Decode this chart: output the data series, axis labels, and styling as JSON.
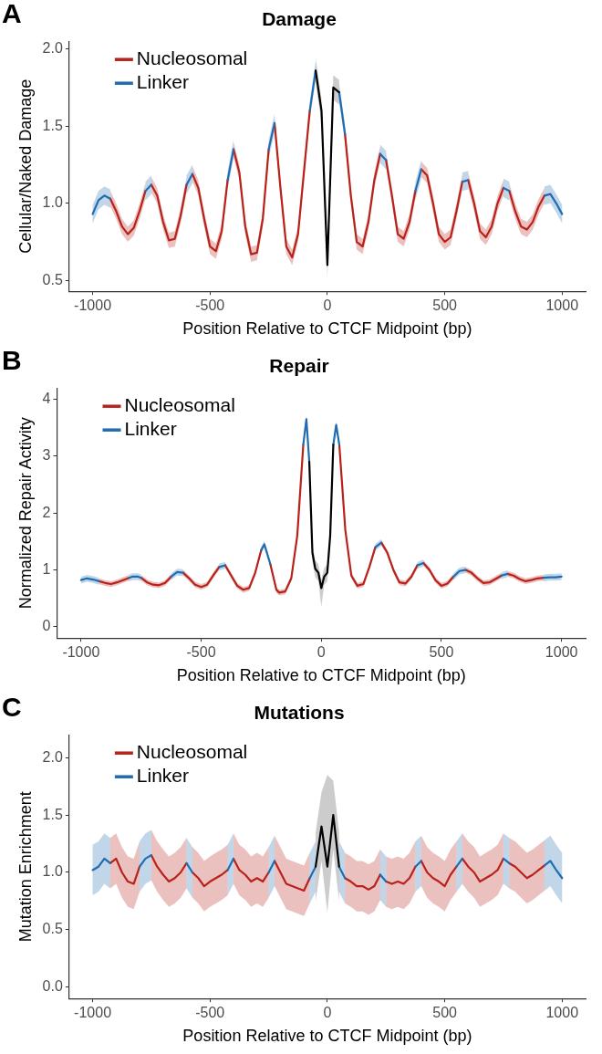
{
  "chart_data": [
    {
      "type": "line",
      "title": "Damage",
      "xlabel": "Position Relative to CTCF Midpoint (bp)",
      "ylabel": "Cellular/Naked Damage",
      "annotations": [
        "A"
      ],
      "legend": "top left",
      "xlim": [
        -1100,
        1100
      ],
      "xticks": [
        -1000,
        -500,
        0,
        500,
        1000
      ],
      "ylim": [
        0.43,
        2.05
      ],
      "yticks": [
        0.5,
        {
          "value": 1,
          "label": "1.0"
        },
        1.5,
        {
          "value": 2,
          "label": "2.0"
        }
      ],
      "series": [
        {
          "name": "Nucleosomal",
          "color": "#b8221a",
          "x": [
            -925,
            -900,
            -875,
            -850,
            -825,
            -800,
            -775,
            -763,
            -750,
            -725,
            -700,
            -675,
            -650,
            -625,
            -600,
            -588,
            -575,
            -550,
            -525,
            -500,
            -475,
            -450,
            -425,
            -413,
            -400,
            -375,
            -350,
            -325,
            -300,
            -275,
            -250,
            -238,
            -225,
            -200,
            -175,
            -150,
            -125,
            -100,
            -75,
            0,
            75,
            100,
            125,
            150,
            175,
            200,
            225,
            238,
            250,
            275,
            300,
            325,
            350,
            375,
            388,
            400,
            425,
            450,
            475,
            500,
            525,
            550,
            575,
            588,
            600,
            625,
            650,
            675,
            700,
            725,
            750,
            763,
            775,
            800,
            825,
            850,
            875,
            900,
            925
          ],
          "values": [
            1.03,
            0.95,
            0.85,
            0.8,
            0.84,
            0.95,
            1.08,
            null,
            1.12,
            1.05,
            0.88,
            0.76,
            0.77,
            0.92,
            1.12,
            null,
            1.19,
            1.1,
            0.9,
            0.72,
            0.69,
            0.82,
            1.15,
            null,
            1.35,
            1.2,
            0.85,
            0.67,
            0.68,
            0.9,
            1.35,
            null,
            1.52,
            1.1,
            0.72,
            0.65,
            0.8,
            1.2,
            1.6,
            null,
            1.45,
            1.05,
            0.75,
            0.72,
            0.88,
            1.15,
            1.32,
            null,
            1.28,
            1.05,
            0.8,
            0.77,
            0.88,
            1.08,
            null,
            1.22,
            1.18,
            1.0,
            0.8,
            0.75,
            0.78,
            0.95,
            1.14,
            null,
            1.15,
            1.0,
            0.82,
            0.78,
            0.85,
            1.0,
            1.1,
            null,
            1.08,
            0.95,
            0.85,
            0.83,
            0.88,
            0.98,
            1.05
          ],
          "lower": [
            0.98,
            0.9,
            0.8,
            0.75,
            0.79,
            0.9,
            1.03,
            null,
            1.07,
            1.0,
            0.83,
            0.71,
            0.72,
            0.87,
            1.07,
            null,
            1.14,
            1.05,
            0.85,
            0.67,
            0.64,
            0.77,
            1.1,
            null,
            1.3,
            1.15,
            0.8,
            0.62,
            0.63,
            0.85,
            1.3,
            null,
            1.47,
            1.05,
            0.67,
            0.6,
            0.75,
            1.15,
            1.55,
            null,
            1.4,
            1.0,
            0.7,
            0.67,
            0.83,
            1.1,
            1.27,
            null,
            1.23,
            1.0,
            0.75,
            0.72,
            0.83,
            1.03,
            null,
            1.17,
            1.13,
            0.95,
            0.75,
            0.7,
            0.73,
            0.9,
            1.09,
            null,
            1.1,
            0.95,
            0.77,
            0.73,
            0.8,
            0.95,
            1.05,
            null,
            1.03,
            0.9,
            0.8,
            0.78,
            0.83,
            0.93,
            1.0
          ],
          "upper": [
            1.08,
            1.0,
            0.9,
            0.85,
            0.89,
            1.0,
            1.13,
            null,
            1.17,
            1.1,
            0.93,
            0.81,
            0.82,
            0.97,
            1.17,
            null,
            1.24,
            1.15,
            0.95,
            0.77,
            0.74,
            0.87,
            1.2,
            null,
            1.4,
            1.25,
            0.9,
            0.72,
            0.73,
            0.95,
            1.4,
            null,
            1.57,
            1.15,
            0.77,
            0.7,
            0.85,
            1.25,
            1.65,
            null,
            1.5,
            1.1,
            0.8,
            0.77,
            0.93,
            1.2,
            1.37,
            null,
            1.33,
            1.1,
            0.85,
            0.82,
            0.93,
            1.13,
            null,
            1.27,
            1.23,
            1.05,
            0.85,
            0.8,
            0.83,
            1.0,
            1.19,
            null,
            1.2,
            1.05,
            0.87,
            0.83,
            0.9,
            1.05,
            1.15,
            null,
            1.13,
            1.0,
            0.9,
            0.88,
            0.93,
            1.03,
            1.1
          ]
        },
        {
          "name": "Linker",
          "color": "#1f6db0",
          "x": [
            -1000,
            -975,
            -950,
            -925,
            -850,
            -775,
            -750,
            -675,
            -600,
            -575,
            -500,
            -425,
            -400,
            -325,
            -250,
            -225,
            -150,
            -75,
            -50,
            0,
            50,
            75,
            150,
            225,
            250,
            325,
            375,
            400,
            500,
            575,
            600,
            675,
            750,
            775,
            850,
            925,
            950,
            975,
            1000
          ],
          "values": [
            0.93,
            1.02,
            1.05,
            1.03,
            null,
            1.08,
            1.12,
            null,
            1.12,
            1.19,
            null,
            1.15,
            1.35,
            null,
            1.35,
            1.52,
            null,
            1.6,
            1.86,
            null,
            1.72,
            1.45,
            null,
            1.32,
            1.28,
            null,
            1.08,
            1.22,
            null,
            1.14,
            1.15,
            null,
            1.1,
            1.08,
            null,
            1.05,
            1.06,
            1.0,
            0.93
          ],
          "lower": [
            0.87,
            0.96,
            0.99,
            0.97,
            null,
            1.02,
            1.06,
            null,
            1.06,
            1.13,
            null,
            1.09,
            1.29,
            null,
            1.29,
            1.46,
            null,
            1.54,
            1.8,
            null,
            1.66,
            1.39,
            null,
            1.26,
            1.22,
            null,
            1.02,
            1.16,
            null,
            1.08,
            1.09,
            null,
            1.04,
            1.02,
            null,
            0.99,
            1.0,
            0.94,
            0.87
          ],
          "upper": [
            0.99,
            1.08,
            1.11,
            1.09,
            null,
            1.14,
            1.18,
            null,
            1.18,
            1.25,
            null,
            1.21,
            1.41,
            null,
            1.41,
            1.58,
            null,
            1.66,
            1.92,
            null,
            1.78,
            1.51,
            null,
            1.38,
            1.34,
            null,
            1.14,
            1.28,
            null,
            1.2,
            1.21,
            null,
            1.16,
            1.14,
            null,
            1.11,
            1.12,
            1.06,
            0.99
          ]
        },
        {
          "color": "#000000",
          "x": [
            -50,
            -25,
            0,
            25,
            50
          ],
          "values": [
            1.86,
            1.6,
            0.6,
            1.75,
            1.72
          ],
          "lower": [
            1.78,
            1.52,
            0.52,
            1.67,
            1.64
          ],
          "upper": [
            1.94,
            1.68,
            0.68,
            1.83,
            1.8
          ]
        }
      ]
    },
    {
      "type": "line",
      "title": "Repair",
      "xlabel": "Position Relative to CTCF Midpoint (bp)",
      "ylabel": "Normalized Repair Activity",
      "annotations": [
        "B"
      ],
      "legend": "top left",
      "xlim": [
        -1100,
        1100
      ],
      "xticks": [
        -1000,
        -500,
        0,
        500,
        1000
      ],
      "ylim": [
        -0.2,
        4.2
      ],
      "yticks": [
        0,
        1,
        2,
        3,
        4
      ],
      "series": [
        {
          "name": "Nucleosomal",
          "color": "#b8221a",
          "x": [
            -925,
            -900,
            -875,
            -850,
            -825,
            -800,
            -787,
            -750,
            -725,
            -700,
            -675,
            -650,
            -625,
            -612,
            -575,
            -550,
            -525,
            -500,
            -475,
            -450,
            -425,
            -412,
            -400,
            -375,
            -350,
            -325,
            -300,
            -275,
            -250,
            -231,
            -212,
            -187,
            -175,
            -150,
            -125,
            -100,
            -75,
            0,
            75,
            100,
            125,
            150,
            175,
            200,
            225,
            237,
            250,
            275,
            300,
            325,
            350,
            375,
            400,
            412,
            425,
            450,
            475,
            500,
            525,
            550,
            575,
            600,
            625,
            650,
            675,
            700,
            725,
            750,
            762,
            775,
            800,
            825,
            850,
            875,
            900,
            925
          ],
          "values": [
            0.8,
            0.77,
            0.75,
            0.78,
            0.82,
            0.86,
            null,
            0.86,
            0.78,
            0.74,
            0.73,
            0.77,
            0.88,
            null,
            0.95,
            0.85,
            0.74,
            0.7,
            0.74,
            0.9,
            1.05,
            null,
            1.08,
            0.9,
            0.72,
            0.65,
            0.68,
            0.95,
            1.35,
            null,
            1.1,
            0.65,
            0.6,
            0.62,
            0.85,
            1.6,
            3.2,
            null,
            3.2,
            1.7,
            0.9,
            0.72,
            0.75,
            1.05,
            1.4,
            null,
            1.48,
            1.3,
            1.0,
            0.78,
            0.76,
            0.88,
            1.08,
            null,
            1.12,
            1.0,
            0.82,
            0.72,
            0.76,
            0.88,
            null,
            1.0,
            0.95,
            0.85,
            0.77,
            0.78,
            0.84,
            0.9,
            null,
            0.93,
            0.9,
            0.84,
            0.8,
            0.82,
            0.85,
            0.86
          ],
          "lower": [
            0.75,
            0.72,
            0.7,
            0.73,
            0.77,
            0.81,
            null,
            0.81,
            0.73,
            0.69,
            0.68,
            0.72,
            0.83,
            null,
            0.9,
            0.8,
            0.69,
            0.65,
            0.69,
            0.85,
            1.0,
            null,
            1.03,
            0.85,
            0.67,
            0.6,
            0.63,
            0.9,
            1.3,
            null,
            1.05,
            0.6,
            0.55,
            0.57,
            0.8,
            1.55,
            3.15,
            null,
            3.15,
            1.65,
            0.85,
            0.67,
            0.7,
            1.0,
            1.35,
            null,
            1.43,
            1.25,
            0.95,
            0.73,
            0.71,
            0.83,
            1.03,
            null,
            1.07,
            0.95,
            0.77,
            0.67,
            0.71,
            0.83,
            null,
            0.95,
            0.9,
            0.8,
            0.72,
            0.73,
            0.79,
            0.85,
            null,
            0.88,
            0.85,
            0.79,
            0.75,
            0.77,
            0.8,
            0.81
          ],
          "upper": [
            0.85,
            0.82,
            0.8,
            0.83,
            0.87,
            0.91,
            null,
            0.91,
            0.83,
            0.79,
            0.78,
            0.82,
            0.93,
            null,
            1.0,
            0.9,
            0.79,
            0.75,
            0.79,
            0.95,
            1.1,
            null,
            1.13,
            0.95,
            0.77,
            0.7,
            0.73,
            1.0,
            1.4,
            null,
            1.15,
            0.7,
            0.65,
            0.67,
            0.9,
            1.65,
            3.25,
            null,
            3.25,
            1.75,
            0.95,
            0.77,
            0.8,
            1.1,
            1.45,
            null,
            1.53,
            1.35,
            1.05,
            0.83,
            0.81,
            0.93,
            1.13,
            null,
            1.17,
            1.05,
            0.87,
            0.77,
            0.81,
            0.93,
            null,
            1.05,
            1.0,
            0.9,
            0.82,
            0.83,
            0.89,
            0.95,
            null,
            0.98,
            0.95,
            0.89,
            0.85,
            0.87,
            0.9,
            0.91
          ]
        },
        {
          "name": "Linker",
          "color": "#1f6db0",
          "x": [
            -1000,
            -975,
            -950,
            -925,
            -862,
            -800,
            -787,
            -762,
            -750,
            -688,
            -625,
            -600,
            -575,
            -512,
            -425,
            -400,
            -325,
            -250,
            -237,
            -212,
            -150,
            -75,
            -62,
            -50,
            0,
            50,
            62,
            75,
            150,
            225,
            250,
            325,
            400,
            425,
            488,
            550,
            575,
            600,
            675,
            750,
            775,
            850,
            925,
            950,
            975,
            1000
          ],
          "values": [
            0.82,
            0.85,
            0.83,
            0.8,
            null,
            0.86,
            0.88,
            0.88,
            0.86,
            null,
            0.88,
            0.96,
            0.95,
            null,
            1.05,
            1.08,
            null,
            1.35,
            1.45,
            1.1,
            null,
            3.2,
            3.65,
            2.9,
            null,
            3.2,
            3.55,
            3.2,
            null,
            1.4,
            1.48,
            null,
            1.08,
            1.12,
            null,
            0.88,
            0.98,
            1.0,
            null,
            0.9,
            0.93,
            null,
            0.86,
            0.87,
            0.87,
            0.88
          ],
          "lower": [
            0.76,
            0.79,
            0.77,
            0.74,
            null,
            0.8,
            0.82,
            0.82,
            0.8,
            null,
            0.82,
            0.9,
            0.89,
            null,
            0.99,
            1.02,
            null,
            1.29,
            1.39,
            1.04,
            null,
            3.14,
            3.59,
            2.84,
            null,
            3.14,
            3.49,
            3.14,
            null,
            1.34,
            1.42,
            null,
            1.02,
            1.06,
            null,
            0.82,
            0.92,
            0.94,
            null,
            0.84,
            0.87,
            null,
            0.8,
            0.81,
            0.81,
            0.82
          ],
          "upper": [
            0.88,
            0.91,
            0.89,
            0.86,
            null,
            0.92,
            0.94,
            0.94,
            0.92,
            null,
            0.94,
            1.02,
            1.01,
            null,
            1.11,
            1.14,
            null,
            1.41,
            1.51,
            1.16,
            null,
            3.26,
            3.71,
            2.96,
            null,
            3.26,
            3.61,
            3.26,
            null,
            1.46,
            1.54,
            null,
            1.14,
            1.18,
            null,
            0.94,
            1.04,
            1.06,
            null,
            0.96,
            0.99,
            null,
            0.92,
            0.93,
            0.93,
            0.94
          ]
        },
        {
          "color": "#000000",
          "x": [
            -50,
            -37,
            -25,
            -12,
            0,
            12,
            25,
            37,
            50
          ],
          "values": [
            2.9,
            1.3,
            1.02,
            0.95,
            0.68,
            0.88,
            0.95,
            1.6,
            3.2
          ],
          "lower": [
            2.75,
            1.15,
            0.87,
            0.8,
            0.35,
            0.73,
            0.8,
            1.45,
            3.05
          ],
          "upper": [
            3.05,
            1.45,
            1.17,
            1.1,
            0.83,
            1.03,
            1.1,
            1.75,
            3.35
          ]
        }
      ]
    },
    {
      "type": "line",
      "title": "Mutations",
      "xlabel": "Position Relative to CTCF Midpoint (bp)",
      "ylabel": "Mutation Enrichment",
      "annotations": [
        "C"
      ],
      "legend": "top left",
      "xlim": [
        -1100,
        1100
      ],
      "xticks": [
        -1000,
        -500,
        0,
        500,
        1000
      ],
      "ylim": [
        -0.1,
        2.2
      ],
      "yticks": [
        {
          "value": 0,
          "label": "0.0"
        },
        0.5,
        {
          "value": 1,
          "label": "1.0"
        },
        1.5,
        {
          "value": 2,
          "label": "2.0"
        }
      ],
      "series": [
        {
          "name": "Nucleosomal",
          "color": "#b8221a",
          "x": [
            -925,
            -900,
            -875,
            -850,
            -825,
            -800,
            -787,
            -750,
            -725,
            -700,
            -675,
            -650,
            -625,
            -600,
            -588,
            -575,
            -550,
            -525,
            -500,
            -475,
            -450,
            -425,
            -412,
            -400,
            -375,
            -350,
            -325,
            -300,
            -275,
            -250,
            -237,
            -225,
            -200,
            -175,
            -150,
            -125,
            -100,
            -75,
            0,
            75,
            100,
            125,
            150,
            175,
            200,
            225,
            237,
            250,
            275,
            300,
            325,
            350,
            375,
            387,
            400,
            425,
            450,
            475,
            500,
            525,
            550,
            562,
            575,
            600,
            625,
            650,
            675,
            700,
            725,
            750,
            762,
            775,
            800,
            825,
            850,
            875,
            900,
            925
          ],
          "values": [
            1.08,
            1.12,
            1.0,
            0.92,
            0.9,
            1.05,
            null,
            1.15,
            1.05,
            0.98,
            0.92,
            0.95,
            1.0,
            1.08,
            null,
            1.0,
            0.95,
            0.88,
            0.92,
            0.95,
            0.98,
            1.02,
            null,
            1.12,
            1.02,
            0.98,
            0.92,
            0.95,
            0.92,
            1.0,
            null,
            1.1,
            1.0,
            0.9,
            0.88,
            0.86,
            0.84,
            0.95,
            null,
            0.95,
            0.92,
            0.88,
            0.88,
            0.85,
            0.88,
            0.98,
            null,
            0.92,
            0.9,
            0.92,
            0.9,
            0.95,
            1.05,
            null,
            1.1,
            1.0,
            0.95,
            0.92,
            0.88,
            0.98,
            1.05,
            null,
            1.12,
            1.05,
            1.0,
            0.92,
            0.95,
            0.98,
            1.02,
            1.12,
            null,
            1.08,
            1.05,
            1.0,
            0.95,
            0.98,
            1.02,
            1.06
          ],
          "lower": [
            0.86,
            0.9,
            0.78,
            0.7,
            0.68,
            0.83,
            null,
            0.93,
            0.83,
            0.76,
            0.7,
            0.73,
            0.78,
            0.86,
            null,
            0.78,
            0.73,
            0.66,
            0.7,
            0.73,
            0.76,
            0.8,
            null,
            0.9,
            0.8,
            0.76,
            0.7,
            0.73,
            0.7,
            0.78,
            null,
            0.88,
            0.78,
            0.68,
            0.66,
            0.64,
            0.62,
            0.73,
            null,
            0.73,
            0.7,
            0.66,
            0.66,
            0.63,
            0.66,
            0.76,
            null,
            0.7,
            0.68,
            0.7,
            0.68,
            0.73,
            0.83,
            null,
            0.88,
            0.78,
            0.73,
            0.7,
            0.66,
            0.76,
            0.83,
            null,
            0.9,
            0.83,
            0.78,
            0.7,
            0.73,
            0.76,
            0.8,
            0.9,
            null,
            0.86,
            0.83,
            0.78,
            0.73,
            0.76,
            0.8,
            0.84
          ],
          "upper": [
            1.3,
            1.34,
            1.22,
            1.14,
            1.12,
            1.27,
            null,
            1.37,
            1.27,
            1.2,
            1.14,
            1.17,
            1.22,
            1.3,
            null,
            1.22,
            1.17,
            1.1,
            1.14,
            1.17,
            1.2,
            1.24,
            null,
            1.34,
            1.24,
            1.2,
            1.14,
            1.17,
            1.14,
            1.22,
            null,
            1.32,
            1.22,
            1.12,
            1.1,
            1.08,
            1.06,
            1.17,
            null,
            1.17,
            1.14,
            1.1,
            1.1,
            1.07,
            1.1,
            1.2,
            null,
            1.14,
            1.12,
            1.14,
            1.12,
            1.17,
            1.27,
            null,
            1.32,
            1.22,
            1.17,
            1.14,
            1.1,
            1.2,
            1.27,
            null,
            1.34,
            1.27,
            1.22,
            1.14,
            1.17,
            1.2,
            1.24,
            1.34,
            null,
            1.3,
            1.27,
            1.22,
            1.17,
            1.2,
            1.24,
            1.28
          ]
        },
        {
          "name": "Linker",
          "color": "#1f6db0",
          "x": [
            -1000,
            -975,
            -950,
            -925,
            -862,
            -800,
            -775,
            -750,
            -675,
            -600,
            -575,
            -500,
            -425,
            -400,
            -325,
            -250,
            -225,
            -150,
            -75,
            -50,
            0,
            50,
            75,
            150,
            225,
            250,
            312,
            375,
            400,
            475,
            550,
            575,
            662,
            750,
            775,
            850,
            925,
            950,
            975,
            1000
          ],
          "values": [
            1.02,
            1.05,
            1.12,
            1.08,
            null,
            1.05,
            1.12,
            1.15,
            null,
            1.08,
            1.0,
            null,
            1.02,
            1.12,
            null,
            1.0,
            1.1,
            null,
            0.95,
            1.05,
            null,
            1.05,
            0.95,
            null,
            0.98,
            0.92,
            null,
            1.05,
            1.1,
            null,
            1.05,
            1.12,
            null,
            1.12,
            1.08,
            null,
            1.06,
            1.1,
            1.02,
            0.95
          ],
          "lower": [
            0.8,
            0.83,
            0.9,
            0.86,
            null,
            0.83,
            0.9,
            0.93,
            null,
            0.86,
            0.78,
            null,
            0.8,
            0.9,
            null,
            0.78,
            0.88,
            null,
            0.73,
            0.83,
            null,
            0.83,
            0.73,
            null,
            0.76,
            0.7,
            null,
            0.83,
            0.88,
            null,
            0.83,
            0.9,
            null,
            0.9,
            0.86,
            null,
            0.84,
            0.88,
            0.8,
            0.73
          ],
          "upper": [
            1.24,
            1.27,
            1.34,
            1.3,
            null,
            1.27,
            1.34,
            1.37,
            null,
            1.3,
            1.22,
            null,
            1.24,
            1.34,
            null,
            1.22,
            1.32,
            null,
            1.17,
            1.27,
            null,
            1.27,
            1.17,
            null,
            1.2,
            1.14,
            null,
            1.27,
            1.32,
            null,
            1.27,
            1.34,
            null,
            1.34,
            1.3,
            null,
            1.28,
            1.32,
            1.24,
            1.17
          ]
        },
        {
          "color": "#000000",
          "x": [
            -50,
            -25,
            0,
            25,
            50
          ],
          "values": [
            1.05,
            1.4,
            1.05,
            1.5,
            1.05
          ],
          "lower": [
            0.75,
            1.1,
            0.65,
            1.2,
            0.75
          ],
          "upper": [
            1.35,
            1.7,
            1.85,
            1.8,
            1.35
          ]
        }
      ]
    }
  ]
}
